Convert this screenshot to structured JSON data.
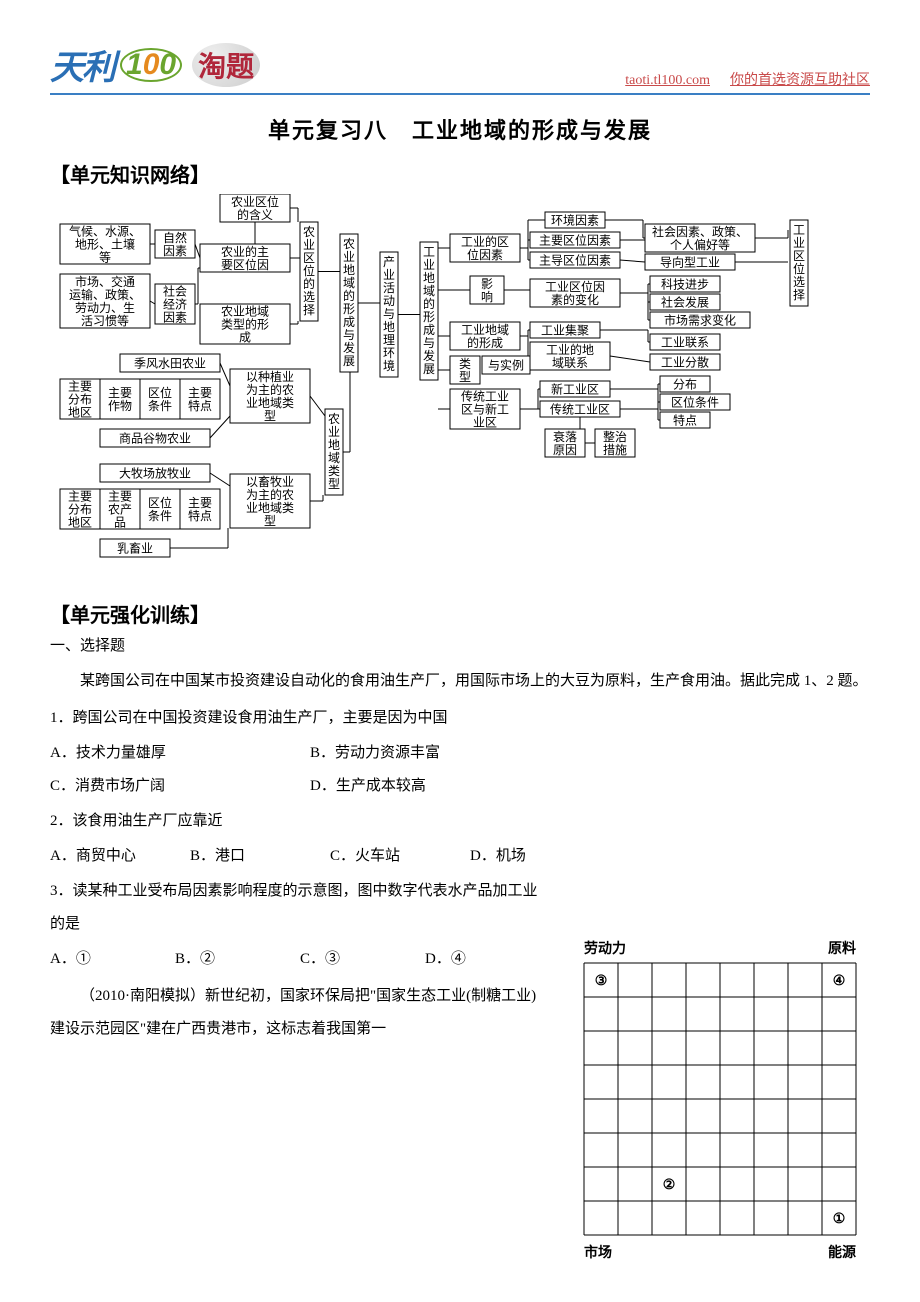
{
  "header": {
    "logo_text": "天利",
    "logo_num": "100",
    "logo_tao": "淘题",
    "url": "taoti.tl100.com",
    "tagline": "你的首选资源互助社区"
  },
  "title": "单元复习八　工业地域的形成与发展",
  "section1_heading": "【单元知识网络】",
  "section2_heading": "【单元强化训练】",
  "sub_heading": "一、选择题",
  "intro_para": "某跨国公司在中国某市投资建设自动化的食用油生产厂，用国际市场上的大豆为原料，生产食用油。据此完成 1、2 题。",
  "q1": {
    "stem": "1．跨国公司在中国投资建设食用油生产厂，主要是因为中国",
    "A": "A．技术力量雄厚",
    "B": "B．劳动力资源丰富",
    "C": "C．消费市场广阔",
    "D": "D．生产成本较高"
  },
  "q2": {
    "stem": "2．该食用油生产厂应靠近",
    "A": "A．商贸中心",
    "B": "B．港口",
    "C": "C．火车站",
    "D": "D．机场"
  },
  "q3": {
    "stem": "3．读某种工业受布局因素影响程度的示意图，图中数字代表水产品加工业的是",
    "A": "A．①",
    "B": "B．②",
    "C": "C．③",
    "D": "D．④"
  },
  "tail_para": "（2010·南阳模拟）新世纪初，国家环保局把\"国家生态工业(制糖工业)建设示范园区\"建在广西贵港市，这标志着我国第一",
  "diagram": {
    "stroke": "#000000",
    "box_fill": "#ffffff",
    "font_size": 12,
    "left": {
      "n1": "气候、水源、地形、土壤等",
      "n1b": "自然因素",
      "n2": "市场、交通运输、政策、劳动力、生活习惯等",
      "n2b": "社会经济因素",
      "n3": "农业区位的含义",
      "n4": "农业的主要区位因素",
      "n5": "农业区位的选择",
      "n6": "农业地域类型的形成",
      "n7": "季风水田农业",
      "n7t": [
        "主要分布地区",
        "主要作物",
        "区位条件",
        "主要特点"
      ],
      "n8": "以种植业为主的农业地域类型",
      "n9": "商品谷物农业",
      "n10": "大牧场放牧业",
      "n10t": [
        "主要分布地区",
        "主要农产品",
        "区位条件",
        "主要特点"
      ],
      "n11": "以畜牧业为主的农业地域类型",
      "n12": "乳畜业",
      "c1": "农业地域的形成与发展",
      "c2": "产业活动与地理环境",
      "c3": "农业地域类型"
    },
    "right": {
      "r1": "工业地域的形成与发展",
      "r2": "工业的区位因素",
      "r3": "影响",
      "r4": "工业地域的形成",
      "r5": "类型与实例",
      "r6": "传统工业区与新工业区",
      "r7": "环境因素",
      "r8": "主要区位因素",
      "r9": "主导区位因素",
      "r10": "工业区位因素的变化",
      "r11": "工业集聚",
      "r12": "工业的地域联系",
      "r13": "新工业区",
      "r14": "传统工业区",
      "r15": "衰落原因",
      "r16": "整治措施",
      "r17": "社会因素、政策、个人偏好等",
      "r18": "导向型工业",
      "r19": "科技进步",
      "r20": "社会发展",
      "r21": "市场需求变化",
      "r22": "工业联系",
      "r23": "工业分散",
      "r24": "分布",
      "r25": "区位条件",
      "r26": "特点",
      "rlabel": "工业区位选择"
    }
  },
  "right_chart": {
    "axis_labels": {
      "top_left": "劳动力",
      "top_right": "原料",
      "bottom_left": "市场",
      "bottom_right": "能源"
    },
    "cols": 8,
    "rows": 8,
    "cell": 34,
    "points": [
      {
        "label": "①",
        "col": 7,
        "row": 7
      },
      {
        "label": "②",
        "col": 2,
        "row": 6
      },
      {
        "label": "③",
        "col": 0,
        "row": 0
      },
      {
        "label": "④",
        "col": 7,
        "row": 0
      }
    ],
    "stroke": "#000000",
    "font_size": 14
  }
}
